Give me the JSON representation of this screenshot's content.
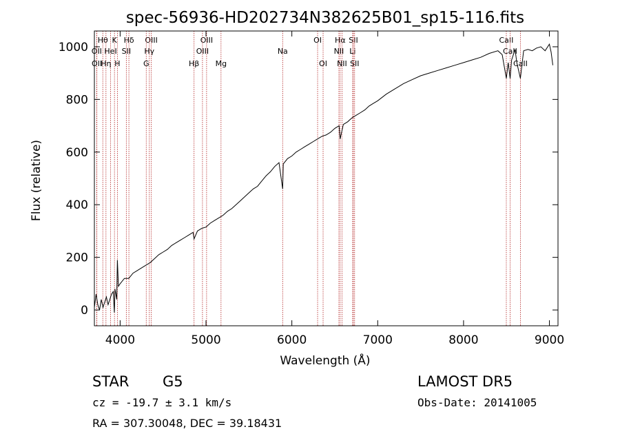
{
  "chart_data": {
    "type": "line",
    "title": "spec-56936-HD202734N382625B01_sp15-116.fits",
    "xlabel": "Wavelength (Å)",
    "ylabel": "Flux (relative)",
    "xlim": [
      3700,
      9100
    ],
    "ylim": [
      -60,
      1060
    ],
    "xticks": [
      4000,
      5000,
      6000,
      7000,
      8000,
      9000
    ],
    "yticks": [
      0,
      200,
      400,
      600,
      800,
      1000
    ],
    "grid": false,
    "line_color": "#000000",
    "marker_color": "#b22222",
    "series": [
      {
        "x": [
          3700,
          3720,
          3740,
          3760,
          3780,
          3800,
          3820,
          3840,
          3860,
          3880,
          3900,
          3920,
          3933,
          3940,
          3960,
          3968,
          3980,
          4000,
          4050,
          4100,
          4150,
          4200,
          4250,
          4300,
          4350,
          4400,
          4450,
          4500,
          4550,
          4600,
          4650,
          4700,
          4750,
          4800,
          4850,
          4861,
          4900,
          4950,
          5000,
          5050,
          5100,
          5150,
          5200,
          5250,
          5300,
          5350,
          5400,
          5450,
          5500,
          5550,
          5600,
          5650,
          5700,
          5750,
          5800,
          5850,
          5893,
          5900,
          5950,
          6000,
          6050,
          6100,
          6150,
          6200,
          6250,
          6300,
          6350,
          6400,
          6450,
          6500,
          6550,
          6563,
          6600,
          6650,
          6700,
          6750,
          6800,
          6850,
          6900,
          6950,
          7000,
          7100,
          7200,
          7300,
          7400,
          7500,
          7600,
          7700,
          7800,
          7900,
          8000,
          8100,
          8200,
          8300,
          8400,
          8450,
          8498,
          8520,
          8542,
          8560,
          8600,
          8620,
          8662,
          8700,
          8750,
          8800,
          8850,
          8900,
          8950,
          9000,
          9020,
          9040
        ],
        "y": [
          10,
          60,
          20,
          0,
          40,
          10,
          30,
          50,
          20,
          40,
          60,
          70,
          -10,
          80,
          40,
          190,
          90,
          100,
          120,
          120,
          140,
          150,
          160,
          170,
          180,
          195,
          210,
          220,
          230,
          245,
          255,
          265,
          275,
          285,
          295,
          270,
          300,
          310,
          315,
          330,
          340,
          350,
          360,
          375,
          385,
          400,
          415,
          430,
          445,
          460,
          470,
          490,
          510,
          525,
          545,
          560,
          460,
          555,
          575,
          585,
          600,
          610,
          620,
          630,
          640,
          650,
          660,
          665,
          675,
          690,
          700,
          650,
          705,
          715,
          730,
          740,
          750,
          760,
          775,
          785,
          795,
          820,
          840,
          860,
          875,
          890,
          900,
          910,
          920,
          930,
          940,
          950,
          960,
          975,
          985,
          970,
          880,
          940,
          880,
          950,
          990,
          940,
          880,
          985,
          990,
          985,
          995,
          1000,
          985,
          1010,
          980,
          930
        ]
      }
    ],
    "line_markers": [
      {
        "label": "Hθ",
        "x": 3798,
        "row": 1
      },
      {
        "label": "K",
        "x": 3934,
        "row": 1
      },
      {
        "label": "Hδ",
        "x": 4102,
        "row": 1
      },
      {
        "label": "OIII",
        "x": 4363,
        "row": 1
      },
      {
        "label": "OIII",
        "x": 5007,
        "row": 1
      },
      {
        "label": "OI",
        "x": 6300,
        "row": 1
      },
      {
        "label": "Hα",
        "x": 6563,
        "row": 1
      },
      {
        "label": "SII",
        "x": 6717,
        "row": 1
      },
      {
        "label": "CaII",
        "x": 8498,
        "row": 1
      },
      {
        "label": "OII",
        "x": 3727,
        "row": 2
      },
      {
        "label": "HeI",
        "x": 3889,
        "row": 2
      },
      {
        "label": "SII",
        "x": 4072,
        "row": 2
      },
      {
        "label": "Hγ",
        "x": 4340,
        "row": 2
      },
      {
        "label": "OIII",
        "x": 4959,
        "row": 2
      },
      {
        "label": "Na",
        "x": 5893,
        "row": 2
      },
      {
        "label": "NII",
        "x": 6548,
        "row": 2
      },
      {
        "label": "Li",
        "x": 6708,
        "row": 2
      },
      {
        "label": "CaII",
        "x": 8542,
        "row": 2
      },
      {
        "label": "OII",
        "x": 3729,
        "row": 3
      },
      {
        "label": "Hη",
        "x": 3835,
        "row": 3
      },
      {
        "label": "H",
        "x": 3968,
        "row": 3
      },
      {
        "label": "G",
        "x": 4304,
        "row": 3
      },
      {
        "label": "Hβ",
        "x": 4861,
        "row": 3
      },
      {
        "label": "Mg",
        "x": 5175,
        "row": 3
      },
      {
        "label": "OI",
        "x": 6364,
        "row": 3
      },
      {
        "label": "NII",
        "x": 6584,
        "row": 3
      },
      {
        "label": "SII",
        "x": 6731,
        "row": 3
      },
      {
        "label": "CaII",
        "x": 8662,
        "row": 3
      }
    ]
  },
  "info": {
    "object_class": "STAR",
    "subclass": "G5",
    "cz": "cz = -19.7 ± 3.1 km/s",
    "coords": "RA = 307.30048, DEC =  39.18431",
    "survey": "LAMOST DR5",
    "obs_date": "Obs-Date: 20141005"
  }
}
